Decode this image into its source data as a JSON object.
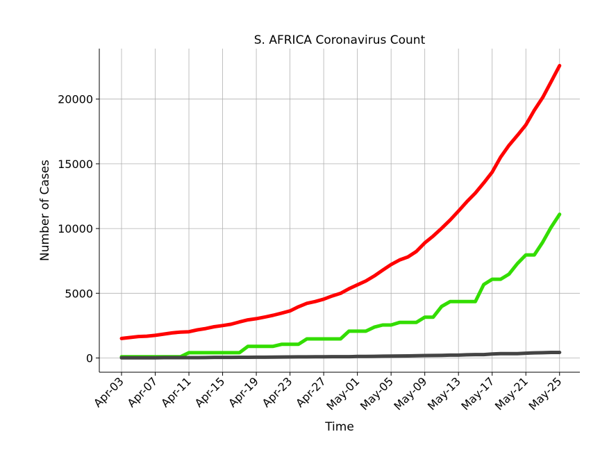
{
  "chart_data": {
    "type": "line",
    "title": "S. AFRICA Coronavirus Count",
    "xlabel": "Time",
    "ylabel": "Number of Cases",
    "ylim": [
      -1100,
      23900
    ],
    "yticks": [
      0,
      5000,
      10000,
      15000,
      20000
    ],
    "grid": true,
    "x_tick_labels": [
      "Apr-03",
      "Apr-07",
      "Apr-11",
      "Apr-15",
      "Apr-19",
      "Apr-23",
      "Apr-27",
      "May-01",
      "May-05",
      "May-09",
      "May-13",
      "May-17",
      "May-21",
      "May-25"
    ],
    "x": [
      "Apr-03",
      "Apr-04",
      "Apr-05",
      "Apr-06",
      "Apr-07",
      "Apr-08",
      "Apr-09",
      "Apr-10",
      "Apr-11",
      "Apr-12",
      "Apr-13",
      "Apr-14",
      "Apr-15",
      "Apr-16",
      "Apr-17",
      "Apr-18",
      "Apr-19",
      "Apr-20",
      "Apr-21",
      "Apr-22",
      "Apr-23",
      "Apr-24",
      "Apr-25",
      "Apr-26",
      "Apr-27",
      "Apr-28",
      "Apr-29",
      "Apr-30",
      "May-01",
      "May-02",
      "May-03",
      "May-04",
      "May-05",
      "May-06",
      "May-07",
      "May-08",
      "May-09",
      "May-10",
      "May-11",
      "May-12",
      "May-13",
      "May-14",
      "May-15",
      "May-16",
      "May-17",
      "May-18",
      "May-19",
      "May-20",
      "May-21",
      "May-22",
      "May-23",
      "May-24",
      "May-25"
    ],
    "series": [
      {
        "color": "#ff0000",
        "values": [
          1505,
          1585,
          1655,
          1686,
          1749,
          1845,
          1934,
          2003,
          2028,
          2173,
          2272,
          2415,
          2506,
          2605,
          2783,
          2943,
          3034,
          3158,
          3300,
          3465,
          3635,
          3953,
          4220,
          4361,
          4546,
          4793,
          4996,
          5350,
          5647,
          5951,
          6336,
          6783,
          7220,
          7572,
          7808,
          8232,
          8895,
          9420,
          10015,
          10652,
          11350,
          12074,
          12739,
          13524,
          14355,
          15515,
          16433,
          17200,
          18003,
          19137,
          20125,
          21343,
          22583
        ]
      },
      {
        "color": "#33dd00",
        "values": [
          95,
          95,
          95,
          95,
          95,
          95,
          95,
          95,
          410,
          410,
          410,
          410,
          410,
          410,
          410,
          903,
          903,
          903,
          903,
          1055,
          1055,
          1055,
          1473,
          1473,
          1473,
          1473,
          1473,
          2073,
          2073,
          2073,
          2382,
          2549,
          2549,
          2746,
          2746,
          2746,
          3153,
          3153,
          3983,
          4357,
          4357,
          4357,
          4357,
          5676,
          6083,
          6083,
          6478,
          7298,
          7960,
          7960,
          8950,
          10104,
          11100
        ]
      },
      {
        "color": "#444444",
        "values": [
          9,
          11,
          13,
          15,
          18,
          24,
          25,
          25,
          25,
          27,
          34,
          48,
          48,
          50,
          52,
          54,
          58,
          58,
          65,
          75,
          79,
          86,
          87,
          90,
          93,
          103,
          103,
          103,
          116,
          123,
          131,
          138,
          148,
          153,
          161,
          178,
          186,
          194,
          206,
          219,
          219,
          247,
          261,
          264,
          312,
          339,
          339,
          339,
          369,
          397,
          407,
          429,
          430
        ]
      }
    ]
  }
}
